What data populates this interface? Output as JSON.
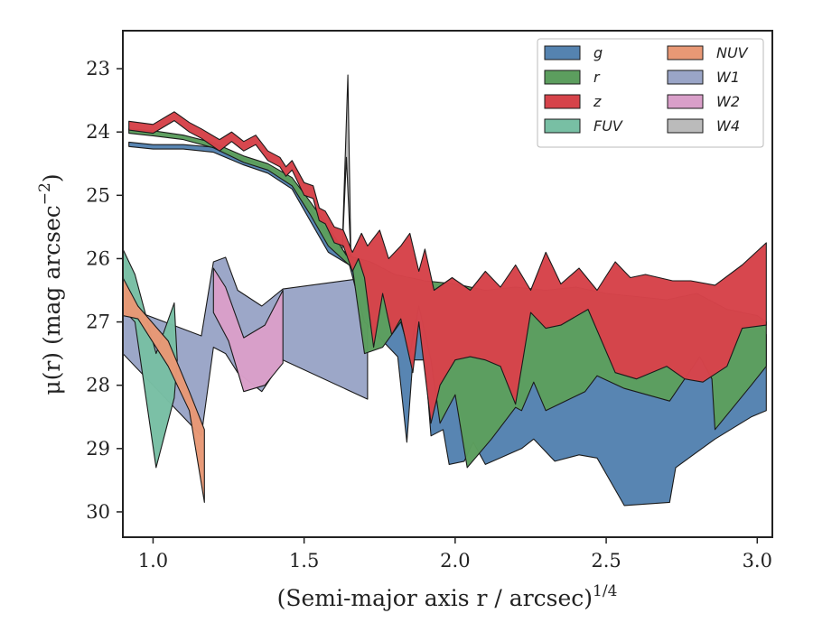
{
  "chart_data": {
    "type": "area",
    "xlabel": "(Semi-major axis r / arcsec)",
    "xlabel_exponent": "1/4",
    "ylabel": "μ(r) (mag arcsec",
    "ylabel_exponent": "−2",
    "ylabel_close": ")",
    "xlim": [
      0.9,
      3.05
    ],
    "ylim": [
      30.4,
      22.4
    ],
    "y_inverted": true,
    "grid": false,
    "legend_position": "top-right",
    "xticks": [
      1.0,
      1.5,
      2.0,
      2.5,
      3.0
    ],
    "xtick_labels": [
      "1.0",
      "1.5",
      "2.0",
      "2.5",
      "3.0"
    ],
    "yticks": [
      23,
      24,
      25,
      26,
      27,
      28,
      29,
      30
    ],
    "ytick_labels": [
      "23",
      "24",
      "25",
      "26",
      "27",
      "28",
      "29",
      "30"
    ],
    "series": [
      {
        "name": "W1",
        "color": "#9aa5c7",
        "upper": [
          [
            0.9,
            26.75
          ],
          [
            1.16,
            27.22
          ],
          [
            1.2,
            26.05
          ],
          [
            1.24,
            25.98
          ],
          [
            1.28,
            26.5
          ],
          [
            1.36,
            26.75
          ],
          [
            1.43,
            26.48
          ],
          [
            1.71,
            26.3
          ]
        ],
        "lower": [
          [
            0.9,
            27.5
          ],
          [
            1.16,
            28.8
          ],
          [
            1.2,
            27.4
          ],
          [
            1.24,
            27.5
          ],
          [
            1.28,
            27.8
          ],
          [
            1.36,
            28.1
          ],
          [
            1.43,
            27.6
          ],
          [
            1.71,
            28.22
          ]
        ]
      },
      {
        "name": "W2",
        "color": "#d99fc9",
        "upper": [
          [
            1.2,
            26.15
          ],
          [
            1.24,
            26.45
          ],
          [
            1.3,
            27.25
          ],
          [
            1.37,
            27.05
          ],
          [
            1.43,
            26.5
          ]
        ],
        "lower": [
          [
            1.2,
            26.85
          ],
          [
            1.25,
            27.3
          ],
          [
            1.3,
            28.1
          ],
          [
            1.37,
            28.0
          ],
          [
            1.43,
            27.65
          ]
        ]
      },
      {
        "name": "FUV",
        "color": "#78bfa4",
        "upper": [
          [
            0.9,
            25.85
          ],
          [
            0.94,
            26.25
          ],
          [
            1.01,
            27.5
          ],
          [
            1.07,
            26.7
          ],
          [
            1.08,
            27.6
          ]
        ],
        "lower": [
          [
            0.9,
            26.8
          ],
          [
            0.94,
            27.0
          ],
          [
            1.01,
            29.3
          ],
          [
            1.07,
            28.2
          ],
          [
            1.08,
            27.6
          ]
        ]
      },
      {
        "name": "NUV",
        "color": "#e89875",
        "upper": [
          [
            0.9,
            26.3
          ],
          [
            0.95,
            26.75
          ],
          [
            1.05,
            27.3
          ],
          [
            1.12,
            28.1
          ],
          [
            1.17,
            28.7
          ]
        ],
        "lower": [
          [
            0.9,
            26.9
          ],
          [
            0.95,
            26.95
          ],
          [
            1.05,
            27.7
          ],
          [
            1.12,
            28.4
          ],
          [
            1.17,
            29.85
          ]
        ]
      },
      {
        "name": "W4",
        "color": "#bbbbbb",
        "upper": [
          [
            1.625,
            26.0
          ],
          [
            1.645,
            23.1
          ],
          [
            1.655,
            26.0
          ]
        ],
        "lower": [
          [
            1.625,
            26.0
          ],
          [
            1.64,
            24.4
          ],
          [
            1.655,
            26.0
          ]
        ]
      },
      {
        "name": "g",
        "color": "#5583b0",
        "upper": [
          [
            0.92,
            24.16
          ],
          [
            1.0,
            24.2
          ],
          [
            1.1,
            24.2
          ],
          [
            1.2,
            24.24
          ],
          [
            1.3,
            24.42
          ],
          [
            1.38,
            24.55
          ],
          [
            1.46,
            24.78
          ],
          [
            1.52,
            25.2
          ],
          [
            1.58,
            25.6
          ],
          [
            1.62,
            25.85
          ],
          [
            1.7,
            26.1
          ],
          [
            1.8,
            26.35
          ],
          [
            1.9,
            26.45
          ],
          [
            2.0,
            26.5
          ],
          [
            2.1,
            26.58
          ],
          [
            2.2,
            26.55
          ],
          [
            2.3,
            26.6
          ],
          [
            2.4,
            26.55
          ],
          [
            2.5,
            26.62
          ],
          [
            2.6,
            26.65
          ],
          [
            2.7,
            26.75
          ],
          [
            2.8,
            26.6
          ],
          [
            2.9,
            26.9
          ],
          [
            3.0,
            27.0
          ],
          [
            3.03,
            27.2
          ]
        ],
        "lower": [
          [
            0.92,
            24.23
          ],
          [
            1.0,
            24.27
          ],
          [
            1.1,
            24.27
          ],
          [
            1.2,
            24.32
          ],
          [
            1.3,
            24.52
          ],
          [
            1.38,
            24.65
          ],
          [
            1.46,
            24.9
          ],
          [
            1.52,
            25.4
          ],
          [
            1.58,
            25.9
          ],
          [
            1.65,
            26.1
          ],
          [
            1.7,
            27.0
          ],
          [
            1.76,
            27.3
          ],
          [
            1.81,
            27.55
          ],
          [
            1.84,
            28.9
          ],
          [
            1.86,
            27.6
          ],
          [
            1.9,
            27.6
          ],
          [
            1.92,
            28.8
          ],
          [
            1.96,
            28.7
          ],
          [
            1.98,
            29.25
          ],
          [
            2.03,
            29.2
          ],
          [
            2.06,
            28.9
          ],
          [
            2.1,
            29.25
          ],
          [
            2.22,
            29.0
          ],
          [
            2.26,
            28.85
          ],
          [
            2.33,
            29.2
          ],
          [
            2.41,
            29.1
          ],
          [
            2.47,
            29.15
          ],
          [
            2.56,
            29.9
          ],
          [
            2.71,
            29.85
          ],
          [
            2.73,
            29.3
          ],
          [
            2.86,
            28.85
          ],
          [
            2.98,
            28.5
          ],
          [
            3.03,
            28.4
          ]
        ]
      },
      {
        "name": "r",
        "color": "#5c9e5e",
        "upper": [
          [
            0.92,
            23.95
          ],
          [
            1.0,
            23.98
          ],
          [
            1.1,
            24.05
          ],
          [
            1.2,
            24.17
          ],
          [
            1.3,
            24.38
          ],
          [
            1.38,
            24.5
          ],
          [
            1.46,
            24.72
          ],
          [
            1.52,
            25.1
          ],
          [
            1.58,
            25.5
          ],
          [
            1.64,
            25.95
          ],
          [
            1.72,
            26.05
          ],
          [
            1.8,
            26.25
          ],
          [
            1.9,
            26.35
          ],
          [
            2.0,
            26.4
          ],
          [
            2.1,
            26.5
          ],
          [
            2.2,
            26.45
          ],
          [
            2.3,
            26.5
          ],
          [
            2.4,
            26.45
          ],
          [
            2.5,
            26.55
          ],
          [
            2.6,
            26.6
          ],
          [
            2.7,
            26.65
          ],
          [
            2.8,
            26.55
          ],
          [
            2.9,
            26.8
          ],
          [
            3.0,
            26.9
          ],
          [
            3.03,
            27.0
          ]
        ],
        "lower": [
          [
            0.92,
            24.02
          ],
          [
            1.0,
            24.06
          ],
          [
            1.1,
            24.12
          ],
          [
            1.2,
            24.25
          ],
          [
            1.3,
            24.48
          ],
          [
            1.38,
            24.6
          ],
          [
            1.46,
            24.85
          ],
          [
            1.52,
            25.3
          ],
          [
            1.58,
            25.8
          ],
          [
            1.66,
            26.15
          ],
          [
            1.7,
            27.5
          ],
          [
            1.76,
            27.4
          ],
          [
            1.82,
            27.0
          ],
          [
            1.85,
            27.5
          ],
          [
            1.88,
            26.75
          ],
          [
            1.92,
            27.6
          ],
          [
            1.95,
            28.6
          ],
          [
            2.0,
            28.15
          ],
          [
            2.04,
            29.3
          ],
          [
            2.12,
            28.85
          ],
          [
            2.2,
            28.35
          ],
          [
            2.22,
            28.4
          ],
          [
            2.26,
            27.95
          ],
          [
            2.3,
            28.4
          ],
          [
            2.43,
            28.1
          ],
          [
            2.47,
            27.85
          ],
          [
            2.56,
            28.05
          ],
          [
            2.71,
            28.25
          ],
          [
            2.81,
            27.55
          ],
          [
            2.85,
            27.9
          ],
          [
            2.86,
            28.7
          ],
          [
            2.98,
            28.0
          ],
          [
            3.03,
            27.7
          ]
        ]
      },
      {
        "name": "z",
        "color": "#d6434a",
        "upper": [
          [
            0.92,
            23.83
          ],
          [
            1.0,
            23.88
          ],
          [
            1.07,
            23.68
          ],
          [
            1.12,
            23.85
          ],
          [
            1.16,
            23.95
          ],
          [
            1.22,
            24.12
          ],
          [
            1.26,
            24.0
          ],
          [
            1.3,
            24.15
          ],
          [
            1.34,
            24.05
          ],
          [
            1.38,
            24.3
          ],
          [
            1.42,
            24.4
          ],
          [
            1.44,
            24.55
          ],
          [
            1.46,
            24.45
          ],
          [
            1.5,
            24.8
          ],
          [
            1.53,
            24.85
          ],
          [
            1.55,
            25.2
          ],
          [
            1.57,
            25.25
          ],
          [
            1.6,
            25.5
          ],
          [
            1.63,
            25.55
          ],
          [
            1.66,
            25.9
          ],
          [
            1.69,
            25.6
          ],
          [
            1.71,
            25.8
          ],
          [
            1.75,
            25.55
          ],
          [
            1.78,
            26.0
          ],
          [
            1.82,
            25.8
          ],
          [
            1.85,
            25.6
          ],
          [
            1.88,
            26.2
          ],
          [
            1.9,
            25.85
          ],
          [
            1.93,
            26.5
          ],
          [
            1.99,
            26.3
          ],
          [
            2.05,
            26.5
          ],
          [
            2.1,
            26.2
          ],
          [
            2.15,
            26.45
          ],
          [
            2.2,
            26.1
          ],
          [
            2.25,
            26.5
          ],
          [
            2.3,
            25.9
          ],
          [
            2.35,
            26.4
          ],
          [
            2.41,
            26.15
          ],
          [
            2.47,
            26.5
          ],
          [
            2.53,
            26.05
          ],
          [
            2.58,
            26.3
          ],
          [
            2.63,
            26.25
          ],
          [
            2.72,
            26.35
          ],
          [
            2.78,
            26.35
          ],
          [
            2.86,
            26.42
          ],
          [
            2.95,
            26.1
          ],
          [
            3.03,
            25.75
          ]
        ],
        "lower": [
          [
            0.92,
            23.97
          ],
          [
            1.0,
            24.02
          ],
          [
            1.07,
            23.82
          ],
          [
            1.12,
            24.0
          ],
          [
            1.16,
            24.1
          ],
          [
            1.22,
            24.3
          ],
          [
            1.26,
            24.15
          ],
          [
            1.3,
            24.3
          ],
          [
            1.34,
            24.2
          ],
          [
            1.38,
            24.45
          ],
          [
            1.42,
            24.55
          ],
          [
            1.44,
            24.7
          ],
          [
            1.46,
            24.6
          ],
          [
            1.5,
            25.0
          ],
          [
            1.53,
            25.05
          ],
          [
            1.55,
            25.4
          ],
          [
            1.57,
            25.45
          ],
          [
            1.6,
            25.75
          ],
          [
            1.63,
            25.8
          ],
          [
            1.66,
            26.2
          ],
          [
            1.68,
            26.0
          ],
          [
            1.7,
            26.3
          ],
          [
            1.73,
            27.4
          ],
          [
            1.76,
            26.55
          ],
          [
            1.79,
            27.2
          ],
          [
            1.82,
            26.95
          ],
          [
            1.86,
            27.8
          ],
          [
            1.88,
            27.0
          ],
          [
            1.92,
            28.6
          ],
          [
            1.95,
            28.0
          ],
          [
            2.0,
            27.6
          ],
          [
            2.05,
            27.55
          ],
          [
            2.1,
            27.6
          ],
          [
            2.15,
            27.7
          ],
          [
            2.2,
            28.3
          ],
          [
            2.25,
            26.85
          ],
          [
            2.3,
            27.1
          ],
          [
            2.35,
            27.05
          ],
          [
            2.44,
            26.8
          ],
          [
            2.53,
            27.8
          ],
          [
            2.6,
            27.9
          ],
          [
            2.7,
            27.7
          ],
          [
            2.76,
            27.9
          ],
          [
            2.82,
            27.95
          ],
          [
            2.9,
            27.7
          ],
          [
            2.95,
            27.1
          ],
          [
            3.03,
            27.05
          ]
        ]
      }
    ],
    "legend": {
      "columns": [
        [
          "g",
          "r",
          "z",
          "FUV"
        ],
        [
          "NUV",
          "W1",
          "W2",
          "W4"
        ]
      ]
    }
  }
}
